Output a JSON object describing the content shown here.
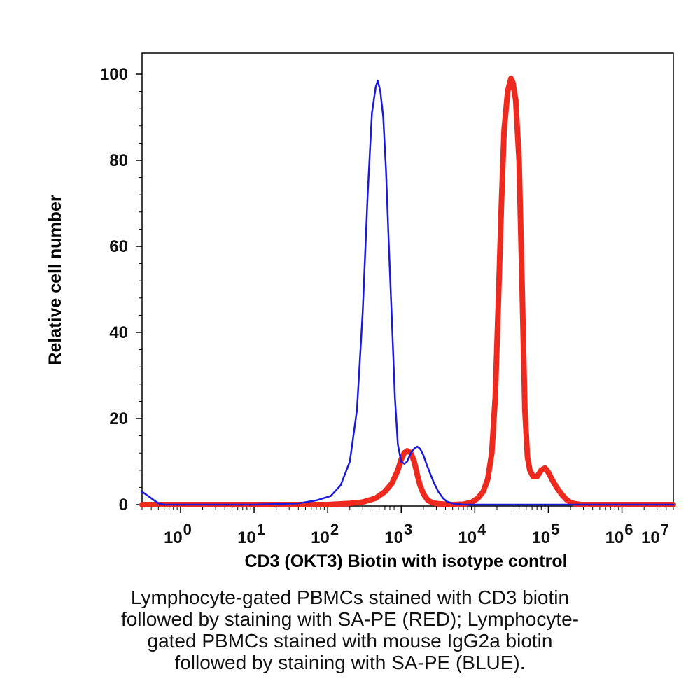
{
  "chart_data": {
    "type": "line",
    "xlabel": "CD3 (OKT3) Biotin with isotype control",
    "ylabel": "Relative cell number",
    "x_scale": "log",
    "xlim": [
      0.3,
      5000000
    ],
    "ylim": [
      0,
      100
    ],
    "y_ticks": [
      "0",
      "20",
      "40",
      "60",
      "80",
      "100"
    ],
    "y_tick_values": [
      0,
      20,
      40,
      60,
      80,
      100
    ],
    "x_ticks": [
      {
        "base": "10",
        "exp": "0"
      },
      {
        "base": "10",
        "exp": "1"
      },
      {
        "base": "10",
        "exp": "2"
      },
      {
        "base": "10",
        "exp": "3"
      },
      {
        "base": "10",
        "exp": "4"
      },
      {
        "base": "10",
        "exp": "5"
      },
      {
        "base": "10",
        "exp": "6"
      },
      {
        "base": "10",
        "exp": "7"
      }
    ],
    "grid": false,
    "series": [
      {
        "color": "#1a1adc",
        "x": [
          0.3,
          0.4,
          0.5,
          0.6,
          1,
          10,
          40,
          70,
          110,
          150,
          200,
          250,
          300,
          350,
          400,
          450,
          480,
          520,
          570,
          620,
          680,
          750,
          820,
          900,
          1000,
          1100,
          1200,
          1350,
          1500,
          1650,
          1800,
          2000,
          2200,
          2500,
          2800,
          3200,
          3700,
          4200,
          5000,
          7000,
          10000,
          100000,
          1000000,
          5000000
        ],
        "y": [
          3,
          1.5,
          0.3,
          0,
          0,
          0,
          0.3,
          1,
          2,
          4.5,
          10,
          22,
          45,
          72,
          91,
          97,
          98.5,
          96,
          90,
          78,
          60,
          42,
          25,
          14,
          10,
          9.5,
          10,
          12,
          13,
          13.5,
          13,
          11.5,
          9.5,
          7,
          5,
          3,
          1.5,
          0.7,
          0.3,
          0,
          0,
          0,
          0,
          0
        ]
      },
      {
        "color": "#ee2a1f",
        "x": [
          0.3,
          1,
          10,
          100,
          200,
          300,
          450,
          600,
          750,
          900,
          1000,
          1100,
          1200,
          1350,
          1500,
          1650,
          1800,
          2000,
          2300,
          2700,
          3200,
          4000,
          5000,
          7000,
          9000,
          11000,
          13000,
          15000,
          17000,
          19000,
          21000,
          23000,
          25000,
          28000,
          31000,
          33000,
          36000,
          40000,
          44000,
          48000,
          52000,
          56000,
          62000,
          70000,
          80000,
          90000,
          100000,
          115000,
          130000,
          150000,
          175000,
          200000,
          230000,
          280000,
          400000,
          1000000,
          5000000
        ],
        "y": [
          0,
          0,
          0,
          0,
          0.3,
          0.6,
          1.5,
          3,
          5,
          8,
          10.5,
          12,
          12.5,
          12,
          10,
          7,
          4.5,
          2.5,
          1,
          0.4,
          0.2,
          0.1,
          0,
          0.1,
          0.5,
          1.5,
          3,
          6,
          12,
          25,
          48,
          70,
          87,
          96,
          99,
          98,
          94,
          80,
          50,
          22,
          11,
          8,
          6.5,
          6.5,
          8,
          8.5,
          7.5,
          5.5,
          4,
          2.5,
          1.2,
          0.5,
          0.2,
          0,
          0,
          0,
          0
        ]
      }
    ]
  },
  "caption_lines": [
    "Lymphocyte-gated PBMCs stained with CD3 biotin",
    "followed by staining with SA-PE (RED); Lymphocyte-",
    "gated PBMCs stained with mouse IgG2a biotin",
    "followed by staining with SA-PE (BLUE)."
  ]
}
